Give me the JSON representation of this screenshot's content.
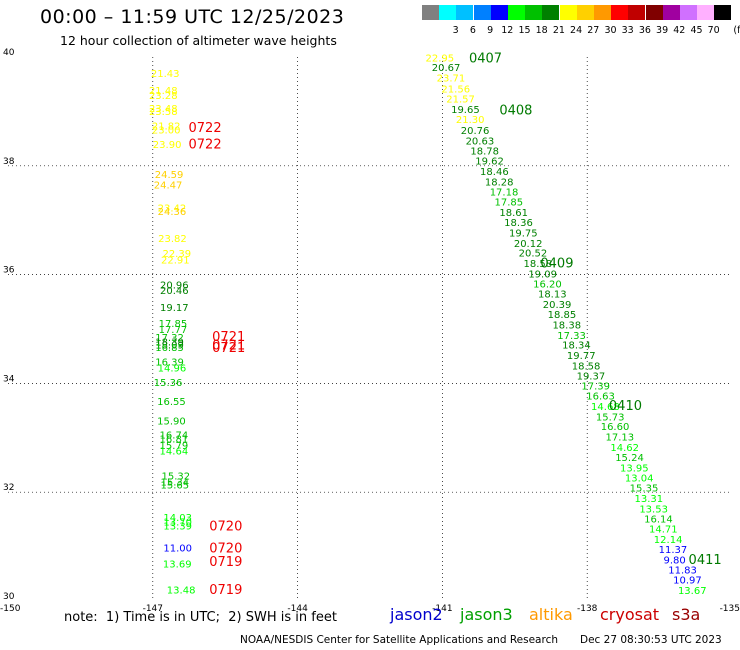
{
  "header": {
    "title": "00:00 – 11:59 UTC 12/25/2023",
    "subtitle": "12 hour collection of altimeter wave heights"
  },
  "legend": {
    "unit": "(ft)",
    "bins": [
      {
        "label": "",
        "color": "#808080"
      },
      {
        "label": "3",
        "color": "#00ffff"
      },
      {
        "label": "6",
        "color": "#00c0ff"
      },
      {
        "label": "9",
        "color": "#0080ff"
      },
      {
        "label": "12",
        "color": "#0000ff"
      },
      {
        "label": "15",
        "color": "#00ff00"
      },
      {
        "label": "18",
        "color": "#00c000"
      },
      {
        "label": "21",
        "color": "#008000"
      },
      {
        "label": "24",
        "color": "#ffff00"
      },
      {
        "label": "27",
        "color": "#ffd000"
      },
      {
        "label": "30",
        "color": "#ff9900"
      },
      {
        "label": "33",
        "color": "#ff0000"
      },
      {
        "label": "36",
        "color": "#c00000"
      },
      {
        "label": "39",
        "color": "#800000"
      },
      {
        "label": "42",
        "color": "#a000a0"
      },
      {
        "label": "45",
        "color": "#d070ff"
      },
      {
        "label": "70",
        "color": "#ffb0ff"
      },
      {
        "label": "",
        "color": "#000000"
      }
    ]
  },
  "note": "note:  1) Time is in UTC;  2) SWH is in feet",
  "satellites": [
    {
      "name": "jason2",
      "color": "#0000cc"
    },
    {
      "name": "jason3",
      "color": "#00a000"
    },
    {
      "name": "altika",
      "color": "#ff9900"
    },
    {
      "name": "cryosat",
      "color": "#cc0000"
    },
    {
      "name": "s3a",
      "color": "#990000"
    }
  ],
  "footer": {
    "credit": "NOAA/NESDIS Center for Satellite Applications and Research",
    "timestamp": "Dec 27 08:30:53 UTC 2023"
  },
  "chart_data": {
    "type": "scatter",
    "xlim": [
      -150,
      -135
    ],
    "ylim": [
      30,
      40
    ],
    "x_ticks": [
      "-150",
      "-147",
      "-144",
      "-141",
      "-138",
      "-135"
    ],
    "y_ticks": [
      "40",
      "38",
      "36",
      "34",
      "32",
      "30"
    ],
    "grid": "dotted",
    "series": [
      {
        "points": [
          {
            "lon": -147.04,
            "lat": 39.63,
            "v": "21.43"
          },
          {
            "lon": -147.08,
            "lat": 39.32,
            "v": "21.48"
          },
          {
            "lon": -147.08,
            "lat": 39.23,
            "v": "23.28"
          },
          {
            "lon": -147.08,
            "lat": 38.99,
            "v": "23.48"
          },
          {
            "lon": -147.08,
            "lat": 38.93,
            "v": "23.58"
          },
          {
            "lon": -147.02,
            "lat": 38.67,
            "v": "21.82"
          },
          {
            "lon": -147.02,
            "lat": 38.59,
            "v": "23.00"
          },
          {
            "lon": -147.0,
            "lat": 38.33,
            "v": "23.90"
          },
          {
            "lon": -146.96,
            "lat": 37.78,
            "v": "24.59"
          },
          {
            "lon": -146.98,
            "lat": 37.58,
            "v": "24.47"
          },
          {
            "lon": -146.9,
            "lat": 37.16,
            "v": "23.42"
          },
          {
            "lon": -146.9,
            "lat": 37.1,
            "v": "24.36"
          },
          {
            "lon": -146.89,
            "lat": 36.6,
            "v": "23.82"
          },
          {
            "lon": -146.8,
            "lat": 36.32,
            "v": "22.39"
          },
          {
            "lon": -146.83,
            "lat": 36.2,
            "v": "22.91"
          },
          {
            "lon": -146.85,
            "lat": 35.74,
            "v": "20.96"
          },
          {
            "lon": -146.85,
            "lat": 35.64,
            "v": "20.46"
          },
          {
            "lon": -146.85,
            "lat": 35.33,
            "v": "19.17"
          },
          {
            "lon": -146.88,
            "lat": 35.04,
            "v": "17.85"
          },
          {
            "lon": -146.88,
            "lat": 34.93,
            "v": "17.77"
          },
          {
            "lon": -146.95,
            "lat": 34.78,
            "v": "17.32"
          },
          {
            "lon": -146.95,
            "lat": 34.7,
            "v": "18.39"
          },
          {
            "lon": -146.95,
            "lat": 34.64,
            "v": "18.09"
          },
          {
            "lon": -146.95,
            "lat": 34.6,
            "v": "16.85"
          },
          {
            "lon": -146.95,
            "lat": 34.33,
            "v": "16.39"
          },
          {
            "lon": -146.9,
            "lat": 34.22,
            "v": "14.96"
          },
          {
            "lon": -146.98,
            "lat": 33.95,
            "v": "15.36"
          },
          {
            "lon": -146.91,
            "lat": 33.6,
            "v": "16.55"
          },
          {
            "lon": -146.91,
            "lat": 33.24,
            "v": "15.90"
          },
          {
            "lon": -146.86,
            "lat": 32.99,
            "v": "16.74"
          },
          {
            "lon": -146.86,
            "lat": 32.91,
            "v": "16.81"
          },
          {
            "lon": -146.86,
            "lat": 32.79,
            "v": "15.79"
          },
          {
            "lon": -146.86,
            "lat": 32.69,
            "v": "14.64"
          },
          {
            "lon": -146.82,
            "lat": 32.23,
            "v": "15.32"
          },
          {
            "lon": -146.84,
            "lat": 32.12,
            "v": "15.34"
          },
          {
            "lon": -146.84,
            "lat": 32.07,
            "v": "15.65"
          },
          {
            "lon": -146.78,
            "lat": 31.47,
            "v": "14.03"
          },
          {
            "lon": -146.78,
            "lat": 31.39,
            "v": "13.70"
          },
          {
            "lon": -146.78,
            "lat": 31.31,
            "v": "13.39"
          },
          {
            "lon": -146.78,
            "lat": 30.91,
            "v": "11.00"
          },
          {
            "lon": -146.79,
            "lat": 30.62,
            "v": "13.69"
          },
          {
            "lon": -146.71,
            "lat": 30.14,
            "v": "13.48"
          }
        ]
      },
      {
        "points": [
          {
            "lon": -141.35,
            "lat": 39.92,
            "v": "22.95"
          },
          {
            "lon": -141.22,
            "lat": 39.74,
            "v": "20.67"
          },
          {
            "lon": -141.12,
            "lat": 39.55,
            "v": "23.71"
          },
          {
            "lon": -141.02,
            "lat": 39.35,
            "v": "21.56"
          },
          {
            "lon": -140.92,
            "lat": 39.16,
            "v": "21.57"
          },
          {
            "lon": -140.82,
            "lat": 38.97,
            "v": "19.65"
          },
          {
            "lon": -140.72,
            "lat": 38.79,
            "v": "21.30"
          },
          {
            "lon": -140.62,
            "lat": 38.58,
            "v": "20.76"
          },
          {
            "lon": -140.52,
            "lat": 38.39,
            "v": "20.63"
          },
          {
            "lon": -140.42,
            "lat": 38.21,
            "v": "18.78"
          },
          {
            "lon": -140.32,
            "lat": 38.02,
            "v": "19.62"
          },
          {
            "lon": -140.22,
            "lat": 37.83,
            "v": "18.46"
          },
          {
            "lon": -140.12,
            "lat": 37.64,
            "v": "18.28"
          },
          {
            "lon": -140.02,
            "lat": 37.45,
            "v": "17.18"
          },
          {
            "lon": -139.92,
            "lat": 37.27,
            "v": "17.85"
          },
          {
            "lon": -139.82,
            "lat": 37.08,
            "v": "18.61"
          },
          {
            "lon": -139.72,
            "lat": 36.89,
            "v": "18.36"
          },
          {
            "lon": -139.62,
            "lat": 36.7,
            "v": "19.75"
          },
          {
            "lon": -139.52,
            "lat": 36.51,
            "v": "20.12"
          },
          {
            "lon": -139.42,
            "lat": 36.33,
            "v": "20.52"
          },
          {
            "lon": -139.32,
            "lat": 36.14,
            "v": "18.58"
          },
          {
            "lon": -139.22,
            "lat": 35.95,
            "v": "19.09"
          },
          {
            "lon": -139.12,
            "lat": 35.76,
            "v": "16.20"
          },
          {
            "lon": -139.02,
            "lat": 35.58,
            "v": "18.13"
          },
          {
            "lon": -138.92,
            "lat": 35.39,
            "v": "20.39"
          },
          {
            "lon": -138.82,
            "lat": 35.2,
            "v": "18.85"
          },
          {
            "lon": -138.72,
            "lat": 35.01,
            "v": "18.38"
          },
          {
            "lon": -138.62,
            "lat": 34.82,
            "v": "17.33"
          },
          {
            "lon": -138.52,
            "lat": 34.64,
            "v": "18.34"
          },
          {
            "lon": -138.42,
            "lat": 34.45,
            "v": "19.77"
          },
          {
            "lon": -138.32,
            "lat": 34.26,
            "v": "18.58"
          },
          {
            "lon": -138.22,
            "lat": 34.07,
            "v": "19.37"
          },
          {
            "lon": -138.12,
            "lat": 33.89,
            "v": "17.39"
          },
          {
            "lon": -138.02,
            "lat": 33.7,
            "v": "16.63"
          },
          {
            "lon": -137.92,
            "lat": 33.51,
            "v": "14.68"
          },
          {
            "lon": -137.82,
            "lat": 33.32,
            "v": "15.73"
          },
          {
            "lon": -137.72,
            "lat": 33.14,
            "v": "16.60"
          },
          {
            "lon": -137.62,
            "lat": 32.95,
            "v": "17.13"
          },
          {
            "lon": -137.52,
            "lat": 32.76,
            "v": "14.62"
          },
          {
            "lon": -137.42,
            "lat": 32.57,
            "v": "15.24"
          },
          {
            "lon": -137.32,
            "lat": 32.38,
            "v": "13.95"
          },
          {
            "lon": -137.22,
            "lat": 32.2,
            "v": "13.04"
          },
          {
            "lon": -137.12,
            "lat": 32.01,
            "v": "15.35"
          },
          {
            "lon": -137.02,
            "lat": 31.82,
            "v": "13.31"
          },
          {
            "lon": -136.92,
            "lat": 31.63,
            "v": "13.53"
          },
          {
            "lon": -136.82,
            "lat": 31.44,
            "v": "16.14"
          },
          {
            "lon": -136.72,
            "lat": 31.26,
            "v": "14.71"
          },
          {
            "lon": -136.62,
            "lat": 31.07,
            "v": "12.14"
          },
          {
            "lon": -136.52,
            "lat": 30.88,
            "v": "11.37"
          },
          {
            "lon": -136.42,
            "lat": 30.69,
            "v": "9.80"
          },
          {
            "lon": -136.32,
            "lat": 30.51,
            "v": "11.83"
          },
          {
            "lon": -136.22,
            "lat": 30.32,
            "v": "10.97"
          },
          {
            "lon": -136.12,
            "lat": 30.13,
            "v": "13.67"
          }
        ]
      }
    ],
    "time_labels": [
      {
        "lon": -146.26,
        "lat": 38.62,
        "text": "0722",
        "color": "#ee0000"
      },
      {
        "lon": -146.26,
        "lat": 38.32,
        "text": "0722",
        "color": "#ee0000"
      },
      {
        "lon": -145.77,
        "lat": 34.78,
        "text": "0721",
        "color": "#ee0000"
      },
      {
        "lon": -145.77,
        "lat": 34.62,
        "text": "0721",
        "color": "#ee0000"
      },
      {
        "lon": -145.77,
        "lat": 34.58,
        "text": "0721",
        "color": "#ee0000"
      },
      {
        "lon": -145.83,
        "lat": 31.3,
        "text": "0720",
        "color": "#ee0000"
      },
      {
        "lon": -145.83,
        "lat": 30.89,
        "text": "0720",
        "color": "#ee0000"
      },
      {
        "lon": -145.83,
        "lat": 30.64,
        "text": "0719",
        "color": "#ee0000"
      },
      {
        "lon": -145.83,
        "lat": 30.13,
        "text": "0719",
        "color": "#ee0000"
      },
      {
        "lon": -140.45,
        "lat": 39.9,
        "text": "0407",
        "color": "#007a00"
      },
      {
        "lon": -139.82,
        "lat": 38.94,
        "text": "0408",
        "color": "#007a00"
      },
      {
        "lon": -138.97,
        "lat": 36.13,
        "text": "0409",
        "color": "#007a00"
      },
      {
        "lon": -137.55,
        "lat": 33.51,
        "text": "0410",
        "color": "#007a00"
      },
      {
        "lon": -135.9,
        "lat": 30.68,
        "text": "0411",
        "color": "#007a00"
      }
    ]
  }
}
